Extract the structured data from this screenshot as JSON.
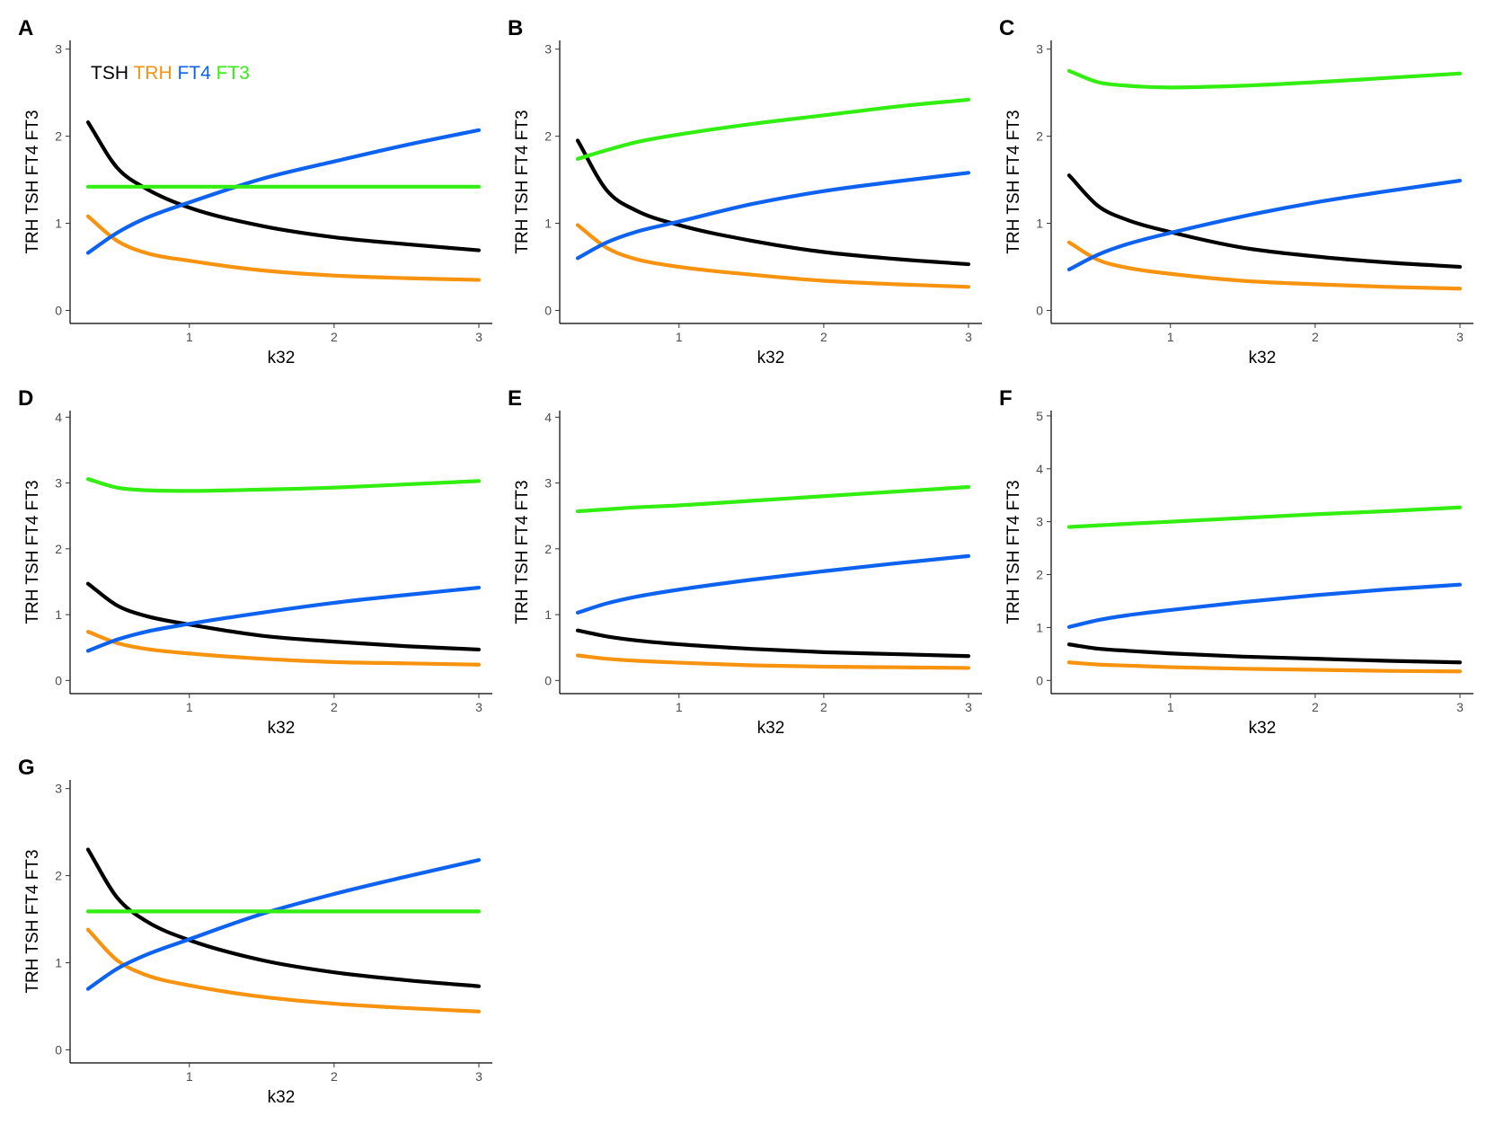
{
  "figure": {
    "colors": {
      "TSH": "#000000",
      "TRH": "#f7930f",
      "FT4": "#0d62f0",
      "FT3": "#33ee11"
    },
    "legend": [
      "TSH",
      "TRH",
      "FT4",
      "FT3"
    ],
    "xlabel": "k32",
    "ylabel": "TRH TSH FT4 FT3"
  },
  "chart_data": [
    {
      "type": "line",
      "panel": "A",
      "xlim": [
        0.25,
        3.1
      ],
      "ylim": [
        -0.15,
        3.1
      ],
      "xticks": [
        1,
        2,
        3
      ],
      "yticks": [
        0,
        1,
        2,
        3
      ],
      "show_legend": true,
      "xlabel": "k32",
      "ylabel": "TRH TSH FT4 FT3",
      "x": [
        0.3,
        0.5,
        0.7,
        1.0,
        1.5,
        2.0,
        2.5,
        3.0
      ],
      "series": [
        {
          "name": "TSH",
          "values": [
            2.16,
            1.64,
            1.4,
            1.18,
            0.97,
            0.84,
            0.76,
            0.69
          ]
        },
        {
          "name": "TRH",
          "values": [
            1.08,
            0.8,
            0.66,
            0.57,
            0.46,
            0.4,
            0.37,
            0.35
          ]
        },
        {
          "name": "FT4",
          "values": [
            0.66,
            0.89,
            1.06,
            1.24,
            1.51,
            1.71,
            1.9,
            2.07
          ]
        },
        {
          "name": "FT3",
          "values": [
            1.42,
            1.42,
            1.42,
            1.42,
            1.42,
            1.42,
            1.42,
            1.42
          ]
        }
      ]
    },
    {
      "type": "line",
      "panel": "B",
      "xlim": [
        0.25,
        3.1
      ],
      "ylim": [
        -0.15,
        3.1
      ],
      "xticks": [
        1,
        2,
        3
      ],
      "yticks": [
        0,
        1,
        2,
        3
      ],
      "xlabel": "k32",
      "ylabel": "TRH TSH FT4 FT3",
      "x": [
        0.3,
        0.5,
        0.7,
        1.0,
        1.5,
        2.0,
        2.5,
        3.0
      ],
      "series": [
        {
          "name": "TSH",
          "values": [
            1.95,
            1.38,
            1.15,
            0.98,
            0.8,
            0.67,
            0.59,
            0.53
          ]
        },
        {
          "name": "TRH",
          "values": [
            0.98,
            0.72,
            0.59,
            0.5,
            0.41,
            0.34,
            0.3,
            0.27
          ]
        },
        {
          "name": "FT4",
          "values": [
            0.6,
            0.78,
            0.9,
            1.02,
            1.22,
            1.37,
            1.48,
            1.58
          ]
        },
        {
          "name": "FT3",
          "values": [
            1.74,
            1.84,
            1.93,
            2.02,
            2.14,
            2.24,
            2.34,
            2.42
          ]
        }
      ]
    },
    {
      "type": "line",
      "panel": "C",
      "xlim": [
        0.25,
        3.1
      ],
      "ylim": [
        -0.15,
        3.1
      ],
      "xticks": [
        1,
        2,
        3
      ],
      "yticks": [
        0,
        1,
        2,
        3
      ],
      "xlabel": "k32",
      "ylabel": "TRH TSH FT4 FT3",
      "x": [
        0.3,
        0.5,
        0.7,
        1.0,
        1.5,
        2.0,
        2.5,
        3.0
      ],
      "series": [
        {
          "name": "TSH",
          "values": [
            1.55,
            1.2,
            1.04,
            0.9,
            0.72,
            0.62,
            0.55,
            0.5
          ]
        },
        {
          "name": "TRH",
          "values": [
            0.78,
            0.58,
            0.49,
            0.42,
            0.34,
            0.3,
            0.27,
            0.25
          ]
        },
        {
          "name": "FT4",
          "values": [
            0.47,
            0.64,
            0.76,
            0.89,
            1.08,
            1.24,
            1.37,
            1.49
          ]
        },
        {
          "name": "FT3",
          "values": [
            2.75,
            2.62,
            2.58,
            2.56,
            2.58,
            2.62,
            2.67,
            2.72
          ]
        }
      ]
    },
    {
      "type": "line",
      "panel": "D",
      "xlim": [
        0.25,
        3.1
      ],
      "ylim": [
        -0.2,
        4.1
      ],
      "xticks": [
        1,
        2,
        3
      ],
      "yticks": [
        0,
        1,
        2,
        3,
        4
      ],
      "xlabel": "k32",
      "ylabel": "TRH TSH FT4 FT3",
      "x": [
        0.3,
        0.5,
        0.7,
        1.0,
        1.5,
        2.0,
        2.5,
        3.0
      ],
      "series": [
        {
          "name": "TSH",
          "values": [
            1.47,
            1.14,
            0.98,
            0.85,
            0.68,
            0.59,
            0.52,
            0.47
          ]
        },
        {
          "name": "TRH",
          "values": [
            0.74,
            0.57,
            0.48,
            0.41,
            0.33,
            0.28,
            0.26,
            0.24
          ]
        },
        {
          "name": "FT4",
          "values": [
            0.45,
            0.62,
            0.74,
            0.86,
            1.03,
            1.18,
            1.3,
            1.41
          ]
        },
        {
          "name": "FT3",
          "values": [
            3.06,
            2.93,
            2.89,
            2.88,
            2.9,
            2.93,
            2.98,
            3.03
          ]
        }
      ]
    },
    {
      "type": "line",
      "panel": "E",
      "xlim": [
        0.25,
        3.1
      ],
      "ylim": [
        -0.2,
        4.1
      ],
      "xticks": [
        1,
        2,
        3
      ],
      "yticks": [
        0,
        1,
        2,
        3,
        4
      ],
      "xlabel": "k32",
      "ylabel": "TRH TSH FT4 FT3",
      "x": [
        0.3,
        0.5,
        0.7,
        1.0,
        1.5,
        2.0,
        2.5,
        3.0
      ],
      "series": [
        {
          "name": "TSH",
          "values": [
            0.76,
            0.67,
            0.61,
            0.55,
            0.48,
            0.43,
            0.4,
            0.37
          ]
        },
        {
          "name": "TRH",
          "values": [
            0.38,
            0.33,
            0.3,
            0.27,
            0.23,
            0.21,
            0.2,
            0.19
          ]
        },
        {
          "name": "FT4",
          "values": [
            1.03,
            1.17,
            1.27,
            1.38,
            1.53,
            1.66,
            1.78,
            1.89
          ]
        },
        {
          "name": "FT3",
          "values": [
            2.57,
            2.6,
            2.63,
            2.66,
            2.73,
            2.8,
            2.87,
            2.94
          ]
        }
      ]
    },
    {
      "type": "line",
      "panel": "F",
      "xlim": [
        0.25,
        3.1
      ],
      "ylim": [
        -0.25,
        5.1
      ],
      "xticks": [
        1,
        2,
        3
      ],
      "yticks": [
        0,
        1,
        2,
        3,
        4,
        5
      ],
      "xlabel": "k32",
      "ylabel": "TRH TSH FT4 FT3",
      "x": [
        0.3,
        0.5,
        0.7,
        1.0,
        1.5,
        2.0,
        2.5,
        3.0
      ],
      "series": [
        {
          "name": "TSH",
          "values": [
            0.68,
            0.6,
            0.56,
            0.51,
            0.45,
            0.41,
            0.37,
            0.34
          ]
        },
        {
          "name": "TRH",
          "values": [
            0.34,
            0.3,
            0.28,
            0.25,
            0.22,
            0.2,
            0.18,
            0.17
          ]
        },
        {
          "name": "FT4",
          "values": [
            1.01,
            1.14,
            1.23,
            1.33,
            1.48,
            1.61,
            1.72,
            1.81
          ]
        },
        {
          "name": "FT3",
          "values": [
            2.9,
            2.93,
            2.96,
            3.0,
            3.07,
            3.14,
            3.2,
            3.27
          ]
        }
      ]
    },
    {
      "type": "line",
      "panel": "G",
      "xlim": [
        0.25,
        3.1
      ],
      "ylim": [
        -0.15,
        3.1
      ],
      "xticks": [
        1,
        2,
        3
      ],
      "yticks": [
        0,
        1,
        2,
        3
      ],
      "xlabel": "k32",
      "ylabel": "TRH TSH FT4 FT3",
      "x": [
        0.3,
        0.5,
        0.7,
        1.0,
        1.5,
        2.0,
        2.5,
        3.0
      ],
      "series": [
        {
          "name": "TSH",
          "values": [
            2.3,
            1.75,
            1.48,
            1.26,
            1.03,
            0.89,
            0.8,
            0.73
          ]
        },
        {
          "name": "TRH",
          "values": [
            1.38,
            1.03,
            0.86,
            0.74,
            0.61,
            0.53,
            0.48,
            0.44
          ]
        },
        {
          "name": "FT4",
          "values": [
            0.7,
            0.93,
            1.09,
            1.27,
            1.56,
            1.79,
            1.99,
            2.18
          ]
        },
        {
          "name": "FT3",
          "values": [
            1.59,
            1.59,
            1.59,
            1.59,
            1.59,
            1.59,
            1.59,
            1.59
          ]
        }
      ]
    }
  ]
}
